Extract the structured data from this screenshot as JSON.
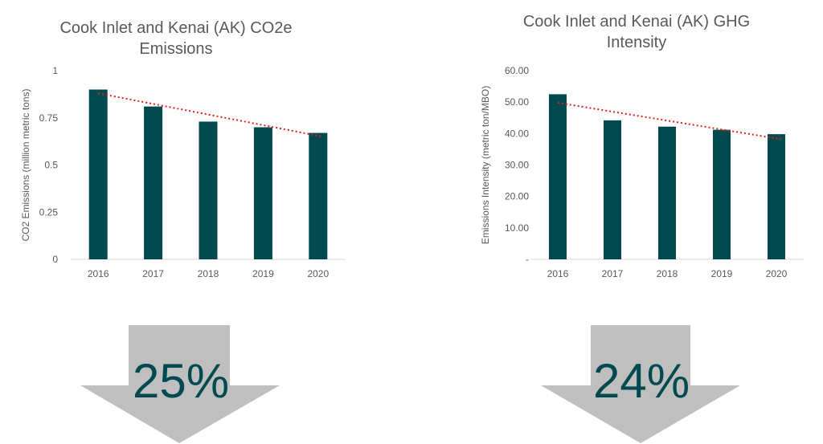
{
  "chart_data": [
    {
      "type": "bar",
      "title": "Cook Inlet and Kenai (AK) CO2e Emissions",
      "title_lines": [
        "Cook Inlet and Kenai (AK) CO2e",
        "Emissions"
      ],
      "xlabel": "",
      "ylabel": "CO2 Emissions (million metric tons)",
      "categories": [
        "2016",
        "2017",
        "2018",
        "2019",
        "2020"
      ],
      "values": [
        0.9,
        0.81,
        0.73,
        0.7,
        0.67
      ],
      "ylim": [
        0,
        1
      ],
      "yticks": [
        0,
        0.25,
        0.5,
        0.75,
        1
      ],
      "ytick_labels": [
        "0",
        "0.25",
        "0.5",
        "0.75",
        "1"
      ],
      "trendline": {
        "style": "dotted",
        "color": "#e0201b",
        "start": 0.88,
        "end": 0.65
      },
      "bar_color": "#004a4f",
      "grid": false,
      "legend": "none",
      "change_label": "25%"
    },
    {
      "type": "bar",
      "title": "Cook Inlet and Kenai (AK) GHG Intensity",
      "title_lines": [
        "Cook Inlet and Kenai (AK) GHG",
        "Intensity"
      ],
      "xlabel": "",
      "ylabel": "Emissions Intensity (metric ton/MBO)",
      "categories": [
        "2016",
        "2017",
        "2018",
        "2019",
        "2020"
      ],
      "values": [
        52.5,
        44.2,
        42.2,
        41.2,
        39.8
      ],
      "ylim": [
        0,
        60
      ],
      "yticks": [
        0,
        10,
        20,
        30,
        40,
        50,
        60
      ],
      "ytick_labels": [
        "-",
        "10.00",
        "20.00",
        "30.00",
        "40.00",
        "50.00",
        "60.00"
      ],
      "trendline": {
        "style": "dotted",
        "color": "#e0201b",
        "start": 49.8,
        "end": 38.2
      },
      "bar_color": "#004a4f",
      "grid": false,
      "legend": "none",
      "change_label": "24%"
    }
  ],
  "colors": {
    "bar": "#004a4f",
    "trendline": "#e0201b",
    "arrow": "#bfbfbf",
    "percent_text": "#004a4f",
    "text": "#595959",
    "axis": "#d9d9d9"
  },
  "icons": [
    "down-arrow-icon",
    "down-arrow-icon"
  ]
}
